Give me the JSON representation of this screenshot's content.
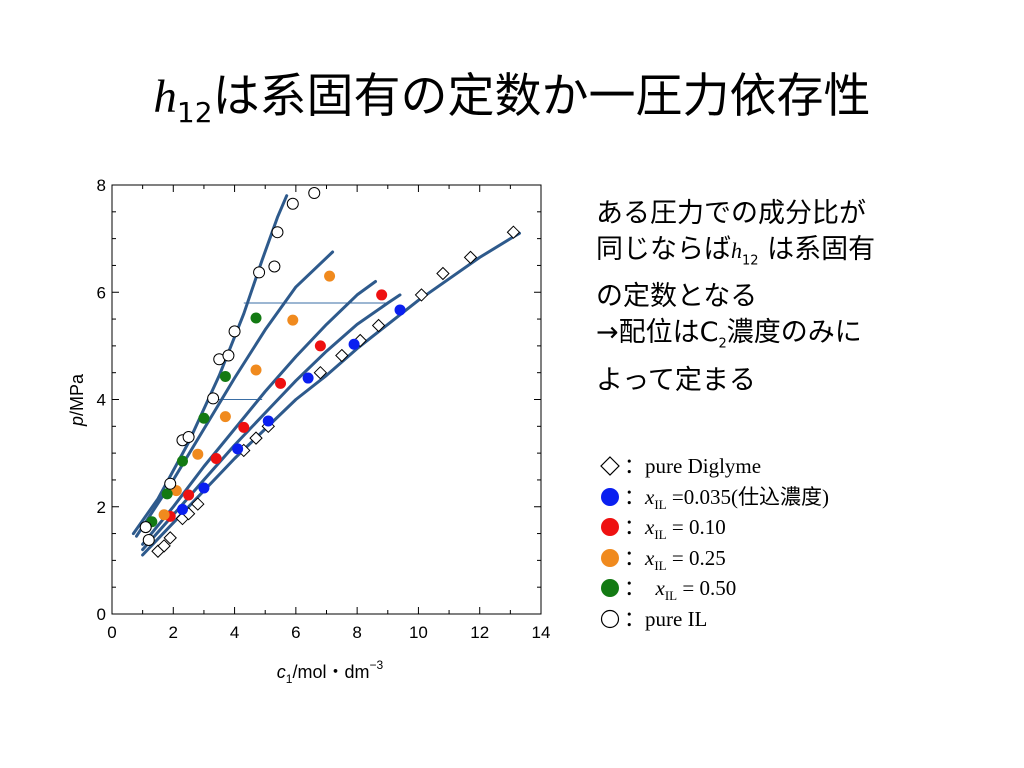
{
  "slide": {
    "title_h": "h",
    "title_sub": "12",
    "title_rest": "は系固有の定数か一圧力依存性"
  },
  "note": {
    "line1": "ある圧力での成分比が",
    "line2_a": "同じならば",
    "line2_h": "h",
    "line2_sub": "12",
    "line2_b": " は系固有",
    "line3": "の定数となる",
    "line4_a": "→配位はC",
    "line4_sub": "2",
    "line4_b": "濃度のみに",
    "line5": "よって定まる"
  },
  "legend": [
    {
      "marker": "diamond-open",
      "prefix": "：",
      "x": "",
      "sub": "",
      "text": "pure Diglyme"
    },
    {
      "marker": "circle-filled",
      "color": "#0a1ff0",
      "prefix": "：",
      "x": "x",
      "sub": "IL",
      "text": " =0.035(仕込濃度)"
    },
    {
      "marker": "circle-filled",
      "color": "#ee1111",
      "prefix": "：",
      "x": "x",
      "sub": "IL",
      "text": " = 0.10"
    },
    {
      "marker": "circle-filled",
      "color": "#f08a1e",
      "prefix": "：",
      "x": "x",
      "sub": "IL",
      "text": " = 0.25"
    },
    {
      "marker": "circle-filled",
      "color": "#137a13",
      "prefix": "：  ",
      "x": "x",
      "sub": "IL",
      "text": " = 0.50"
    },
    {
      "marker": "circle-open",
      "prefix": "：",
      "x": "",
      "sub": "",
      "text": "pure IL"
    }
  ],
  "chart_data": {
    "type": "scatter",
    "xlabel": "c1/mol・dm−3",
    "xlabel_parts": {
      "c": "c",
      "sub": "1",
      "rest": "/mol・dm",
      "sup": "−3"
    },
    "ylabel": "p/MPa",
    "ylabel_parts": {
      "p": "p",
      "rest": "/MPa"
    },
    "xlim": [
      0,
      14
    ],
    "ylim": [
      0,
      8
    ],
    "xticks": [
      0,
      2,
      4,
      6,
      8,
      10,
      12,
      14
    ],
    "yticks": [
      0,
      2,
      4,
      6,
      8
    ],
    "grid": false,
    "series": [
      {
        "name": "pure Diglyme",
        "marker": "diamond-open",
        "color": "#000000",
        "points": [
          [
            1.5,
            1.17
          ],
          [
            1.7,
            1.27
          ],
          [
            1.9,
            1.42
          ],
          [
            2.3,
            1.78
          ],
          [
            2.5,
            1.87
          ],
          [
            2.8,
            2.05
          ],
          [
            4.3,
            3.05
          ],
          [
            4.7,
            3.28
          ],
          [
            5.1,
            3.5
          ],
          [
            6.8,
            4.5
          ],
          [
            7.5,
            4.82
          ],
          [
            8.1,
            5.1
          ],
          [
            8.7,
            5.38
          ],
          [
            10.1,
            5.95
          ],
          [
            10.8,
            6.35
          ],
          [
            11.7,
            6.65
          ],
          [
            13.1,
            7.12
          ]
        ]
      },
      {
        "name": "xIL=0.035",
        "marker": "circle-filled",
        "color": "#0a1ff0",
        "points": [
          [
            2.3,
            1.95
          ],
          [
            3.0,
            2.35
          ],
          [
            4.1,
            3.08
          ],
          [
            5.1,
            3.6
          ],
          [
            6.4,
            4.4
          ],
          [
            7.9,
            5.03
          ],
          [
            9.4,
            5.67
          ]
        ]
      },
      {
        "name": "xIL=0.10",
        "marker": "circle-filled",
        "color": "#ee1111",
        "points": [
          [
            1.9,
            1.82
          ],
          [
            2.5,
            2.22
          ],
          [
            3.4,
            2.9
          ],
          [
            4.3,
            3.48
          ],
          [
            5.5,
            4.3
          ],
          [
            6.8,
            5.0
          ],
          [
            8.8,
            5.95
          ]
        ]
      },
      {
        "name": "xIL=0.25",
        "marker": "circle-filled",
        "color": "#f08a1e",
        "points": [
          [
            1.7,
            1.85
          ],
          [
            2.1,
            2.3
          ],
          [
            2.8,
            2.98
          ],
          [
            3.7,
            3.68
          ],
          [
            4.7,
            4.55
          ],
          [
            5.9,
            5.48
          ],
          [
            7.1,
            6.3
          ]
        ]
      },
      {
        "name": "xIL=0.50",
        "marker": "circle-filled",
        "color": "#137a13",
        "points": [
          [
            1.3,
            1.72
          ],
          [
            1.8,
            2.24
          ],
          [
            2.3,
            2.85
          ],
          [
            3.0,
            3.65
          ],
          [
            3.7,
            4.43
          ],
          [
            4.7,
            5.52
          ]
        ]
      },
      {
        "name": "pure IL",
        "marker": "circle-open",
        "color": "#000000",
        "points": [
          [
            1.1,
            1.62
          ],
          [
            1.2,
            1.38
          ],
          [
            1.9,
            2.43
          ],
          [
            2.3,
            3.24
          ],
          [
            2.5,
            3.3
          ],
          [
            3.3,
            4.02
          ],
          [
            3.5,
            4.75
          ],
          [
            3.8,
            4.82
          ],
          [
            4.0,
            5.27
          ],
          [
            4.8,
            6.37
          ],
          [
            5.3,
            6.48
          ],
          [
            5.4,
            7.12
          ],
          [
            5.9,
            7.65
          ],
          [
            6.6,
            7.85
          ]
        ]
      }
    ],
    "curves": [
      {
        "points": [
          [
            1.0,
            1.1
          ],
          [
            2.0,
            1.7
          ],
          [
            3.0,
            2.3
          ],
          [
            4.0,
            2.9
          ],
          [
            5.0,
            3.45
          ],
          [
            6.0,
            4.0
          ],
          [
            7.0,
            4.45
          ],
          [
            8.0,
            4.95
          ],
          [
            9.0,
            5.4
          ],
          [
            10.0,
            5.85
          ],
          [
            11.0,
            6.25
          ],
          [
            12.0,
            6.65
          ],
          [
            13.0,
            7.0
          ],
          [
            13.3,
            7.1
          ]
        ]
      },
      {
        "points": [
          [
            1.0,
            1.2
          ],
          [
            2.0,
            1.85
          ],
          [
            3.0,
            2.5
          ],
          [
            4.0,
            3.15
          ],
          [
            5.0,
            3.75
          ],
          [
            6.0,
            4.35
          ],
          [
            7.0,
            4.9
          ],
          [
            8.0,
            5.4
          ],
          [
            9.0,
            5.8
          ],
          [
            9.4,
            5.95
          ]
        ]
      },
      {
        "points": [
          [
            1.0,
            1.3
          ],
          [
            2.0,
            2.0
          ],
          [
            3.0,
            2.75
          ],
          [
            4.0,
            3.45
          ],
          [
            5.0,
            4.15
          ],
          [
            6.0,
            4.8
          ],
          [
            7.0,
            5.4
          ],
          [
            8.0,
            5.95
          ],
          [
            8.6,
            6.2
          ]
        ]
      },
      {
        "points": [
          [
            0.8,
            1.45
          ],
          [
            2.0,
            2.5
          ],
          [
            3.0,
            3.45
          ],
          [
            4.0,
            4.4
          ],
          [
            5.0,
            5.3
          ],
          [
            6.0,
            6.1
          ],
          [
            7.2,
            6.75
          ]
        ]
      },
      {
        "points": [
          [
            0.7,
            1.5
          ],
          [
            1.5,
            2.15
          ],
          [
            2.5,
            3.2
          ],
          [
            3.5,
            4.45
          ],
          [
            4.3,
            5.6
          ],
          [
            4.9,
            6.6
          ],
          [
            5.4,
            7.4
          ],
          [
            5.7,
            7.8
          ]
        ]
      }
    ],
    "connectors": [
      {
        "from": [
          1.6,
          1.9
        ],
        "to": [
          2.1,
          1.9
        ]
      },
      {
        "from": [
          3.3,
          4.0
        ],
        "to": [
          4.9,
          4.0
        ]
      },
      {
        "from": [
          4.3,
          5.8
        ],
        "to": [
          9.0,
          5.8
        ]
      }
    ]
  }
}
